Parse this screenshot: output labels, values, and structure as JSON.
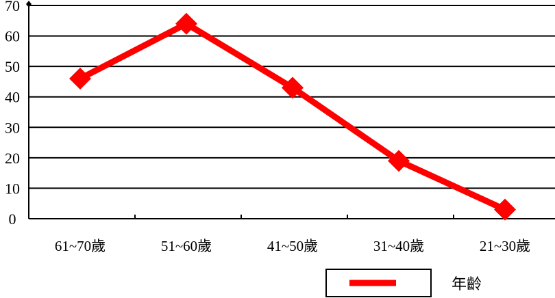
{
  "chart_data": {
    "type": "line",
    "categories": [
      "61~70歲",
      "51~60歲",
      "41~50歲",
      "31~40歲",
      "21~30歲"
    ],
    "series": [
      {
        "name": "年齡",
        "values": [
          46,
          64,
          43,
          19,
          3
        ],
        "color": "#ff0000",
        "marker": "diamond"
      }
    ],
    "yticks": [
      "0",
      "10",
      "20",
      "30",
      "40",
      "50",
      "60",
      "70"
    ],
    "ylim": [
      0,
      70
    ],
    "grid": true,
    "legend": "bottom-right"
  }
}
